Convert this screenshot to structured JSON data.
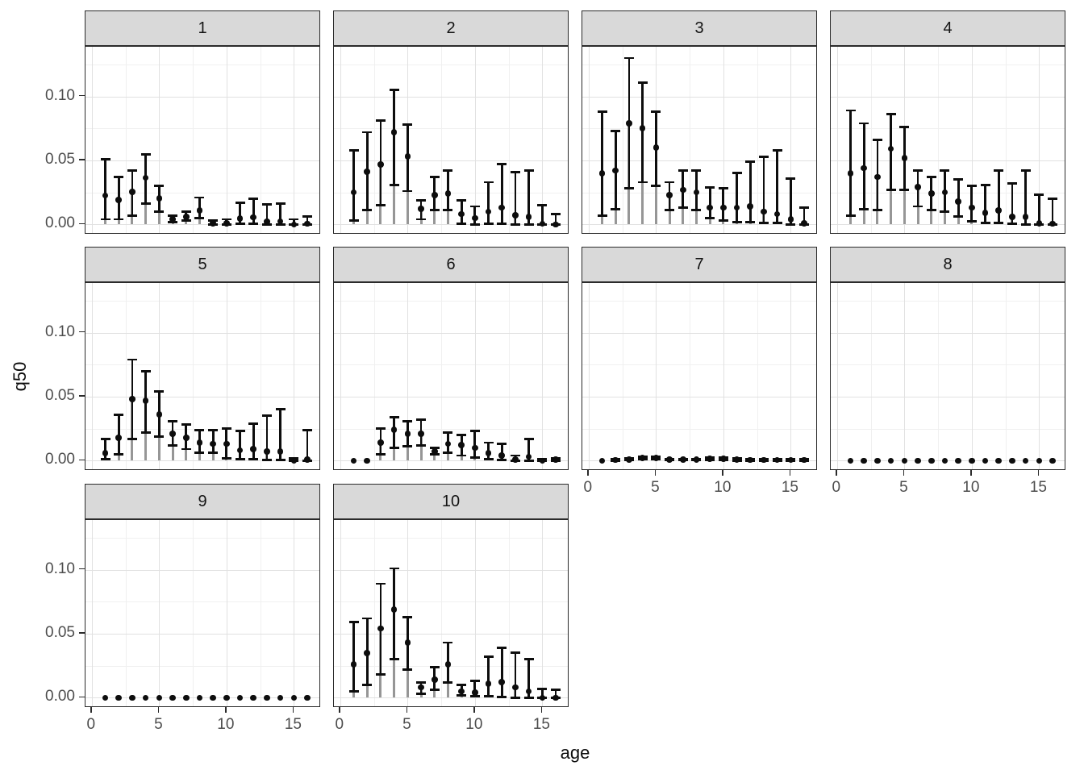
{
  "figure": {
    "y_axis_title": "q50",
    "x_axis_title": "age",
    "y_tick_labels": [
      "0.00",
      "0.05",
      "0.10"
    ],
    "x_tick_labels": [
      "0",
      "5",
      "10",
      "15"
    ],
    "colors": {
      "strip_fill": "#d9d9d9",
      "strip_border": "#2b2b2b",
      "panel_border": "#2b2b2b",
      "grid_major": "#e1e1e1",
      "grid_minor": "#f0f0f0",
      "point_black": "#0d0d0d",
      "stem_gray": "#969696",
      "tick_label_gray": "#4d4d4d"
    }
  },
  "chart_data": {
    "type": "pointrange-facets",
    "description": "Faceted pointrange plot: median q50 with interval bars vs age, one panel per group 1-10; gray stems run from 0 to the point value",
    "xlabel": "age",
    "ylabel": "q50",
    "x": [
      1,
      2,
      3,
      4,
      5,
      6,
      7,
      8,
      9,
      10,
      11,
      12,
      13,
      14,
      15,
      16
    ],
    "x_ticks": [
      0,
      5,
      10,
      15
    ],
    "x_minor_ticks": [
      2.5,
      7.5,
      12.5
    ],
    "y_ticks": [
      0.0,
      0.05,
      0.1
    ],
    "y_minor_ticks": [
      0.025,
      0.075,
      0.125
    ],
    "xlim": [
      -0.5,
      17.0
    ],
    "ylim": [
      -0.007,
      0.138
    ],
    "grid": "on",
    "facet_rows": [
      [
        "1",
        "2",
        "3",
        "4"
      ],
      [
        "5",
        "6",
        "7",
        "8"
      ],
      [
        "9",
        "10"
      ]
    ],
    "panels": [
      {
        "title": "1",
        "q50": [
          0.0225,
          0.019,
          0.0255,
          0.0365,
          0.0205,
          0.004,
          0.006,
          0.011,
          0.001,
          0.001,
          0.0045,
          0.0055,
          0.002,
          0.0025,
          0.0,
          0.0005
        ],
        "lower": [
          0.004,
          0.004,
          0.007,
          0.0165,
          0.01,
          0.002,
          0.003,
          0.005,
          0.0,
          0.0,
          0.0005,
          0.0005,
          0.0,
          0.0,
          0.0,
          0.0
        ],
        "upper": [
          0.051,
          0.037,
          0.042,
          0.0545,
          0.03,
          0.007,
          0.01,
          0.021,
          0.003,
          0.004,
          0.017,
          0.02,
          0.0155,
          0.0165,
          0.004,
          0.006
        ]
      },
      {
        "title": "2",
        "q50": [
          0.025,
          0.041,
          0.047,
          0.072,
          0.053,
          0.012,
          0.023,
          0.024,
          0.008,
          0.005,
          0.01,
          0.013,
          0.007,
          0.006,
          0.0005,
          0.0
        ],
        "lower": [
          0.003,
          0.011,
          0.015,
          0.031,
          0.026,
          0.004,
          0.011,
          0.011,
          0.0005,
          0.0,
          0.0005,
          0.0005,
          0.0,
          0.0,
          0.0,
          0.0
        ],
        "upper": [
          0.058,
          0.072,
          0.081,
          0.105,
          0.078,
          0.019,
          0.037,
          0.042,
          0.019,
          0.014,
          0.033,
          0.047,
          0.041,
          0.042,
          0.015,
          0.008
        ]
      },
      {
        "title": "3",
        "q50": [
          0.04,
          0.042,
          0.079,
          0.075,
          0.06,
          0.023,
          0.027,
          0.025,
          0.013,
          0.013,
          0.013,
          0.014,
          0.01,
          0.008,
          0.004,
          0.001
        ],
        "lower": [
          0.007,
          0.012,
          0.028,
          0.033,
          0.03,
          0.011,
          0.013,
          0.011,
          0.005,
          0.003,
          0.002,
          0.002,
          0.001,
          0.001,
          0.0,
          0.0
        ],
        "upper": [
          0.088,
          0.073,
          0.13,
          0.111,
          0.088,
          0.033,
          0.042,
          0.042,
          0.029,
          0.028,
          0.04,
          0.049,
          0.053,
          0.058,
          0.036,
          0.013
        ]
      },
      {
        "title": "4",
        "q50": [
          0.04,
          0.044,
          0.037,
          0.059,
          0.052,
          0.029,
          0.024,
          0.025,
          0.018,
          0.013,
          0.009,
          0.011,
          0.006,
          0.006,
          0.001,
          0.0005
        ],
        "lower": [
          0.007,
          0.012,
          0.011,
          0.027,
          0.027,
          0.014,
          0.011,
          0.01,
          0.006,
          0.0025,
          0.001,
          0.001,
          0.0005,
          0.0,
          0.0,
          0.0
        ],
        "upper": [
          0.089,
          0.079,
          0.066,
          0.086,
          0.076,
          0.042,
          0.037,
          0.042,
          0.035,
          0.03,
          0.031,
          0.042,
          0.032,
          0.042,
          0.023,
          0.02
        ]
      },
      {
        "title": "5",
        "q50": [
          0.006,
          0.018,
          0.048,
          0.047,
          0.036,
          0.021,
          0.018,
          0.014,
          0.013,
          0.013,
          0.008,
          0.009,
          0.007,
          0.007,
          0.0,
          0.001
        ],
        "lower": [
          0.001,
          0.005,
          0.017,
          0.022,
          0.019,
          0.012,
          0.009,
          0.006,
          0.006,
          0.002,
          0.001,
          0.001,
          0.0005,
          0.0005,
          0.0,
          0.0
        ],
        "upper": [
          0.017,
          0.036,
          0.079,
          0.07,
          0.054,
          0.031,
          0.028,
          0.024,
          0.024,
          0.025,
          0.023,
          0.029,
          0.035,
          0.04,
          0.002,
          0.024
        ]
      },
      {
        "title": "6",
        "q50": [
          0.0,
          0.0,
          0.014,
          0.024,
          0.021,
          0.021,
          0.007,
          0.013,
          0.012,
          0.01,
          0.006,
          0.004,
          0.001,
          0.003,
          0.0,
          0.001
        ],
        "lower": [
          0.0,
          0.0,
          0.005,
          0.01,
          0.011,
          0.012,
          0.005,
          0.006,
          0.004,
          0.0025,
          0.001,
          0.0005,
          0.0,
          0.0,
          0.0,
          0.0
        ],
        "upper": [
          0.0,
          0.0,
          0.025,
          0.034,
          0.031,
          0.032,
          0.01,
          0.022,
          0.02,
          0.023,
          0.014,
          0.013,
          0.004,
          0.017,
          0.001,
          0.002
        ]
      },
      {
        "title": "7",
        "q50": [
          0.0,
          0.0005,
          0.001,
          0.002,
          0.002,
          0.001,
          0.001,
          0.001,
          0.0015,
          0.0015,
          0.001,
          0.0005,
          0.0005,
          0.0005,
          0.0005,
          0.0005
        ],
        "lower": [
          0.0,
          0.0,
          0.0005,
          0.001,
          0.001,
          0.0005,
          0.0005,
          0.0005,
          0.0005,
          0.0005,
          0.0,
          0.0,
          0.0,
          0.0,
          0.0,
          0.0
        ],
        "upper": [
          0.0005,
          0.001,
          0.002,
          0.003,
          0.003,
          0.0015,
          0.0015,
          0.0015,
          0.0025,
          0.0025,
          0.002,
          0.001,
          0.001,
          0.001,
          0.001,
          0.001
        ]
      },
      {
        "title": "8",
        "q50": [
          0,
          0,
          0,
          0,
          0,
          0,
          0,
          0,
          0,
          0,
          0,
          0,
          0,
          0,
          0,
          0
        ],
        "lower": [
          0,
          0,
          0,
          0,
          0,
          0,
          0,
          0,
          0,
          0,
          0,
          0,
          0,
          0,
          0,
          0
        ],
        "upper": [
          0,
          0,
          0,
          0,
          0,
          0,
          0,
          0,
          0,
          0,
          0,
          0,
          0,
          0,
          0,
          0
        ]
      },
      {
        "title": "9",
        "q50": [
          0,
          0,
          0,
          0,
          0,
          0,
          0,
          0,
          0,
          0,
          0,
          0,
          0,
          0,
          0,
          0
        ],
        "lower": [
          0,
          0,
          0,
          0,
          0,
          0,
          0,
          0,
          0,
          0,
          0,
          0,
          0,
          0,
          0,
          0
        ],
        "upper": [
          0,
          0,
          0,
          0,
          0,
          0,
          0,
          0,
          0,
          0,
          0,
          0,
          0,
          0,
          0,
          0
        ]
      },
      {
        "title": "10",
        "q50": [
          0.026,
          0.035,
          0.054,
          0.069,
          0.043,
          0.008,
          0.014,
          0.026,
          0.005,
          0.004,
          0.011,
          0.012,
          0.008,
          0.005,
          0.0,
          0.0
        ],
        "lower": [
          0.005,
          0.01,
          0.018,
          0.03,
          0.022,
          0.003,
          0.006,
          0.012,
          0.002,
          0.001,
          0.001,
          0.0005,
          0.0,
          0.0,
          0.0,
          0.0
        ],
        "upper": [
          0.059,
          0.062,
          0.089,
          0.101,
          0.063,
          0.012,
          0.024,
          0.043,
          0.01,
          0.013,
          0.032,
          0.039,
          0.035,
          0.03,
          0.007,
          0.006
        ]
      }
    ]
  }
}
